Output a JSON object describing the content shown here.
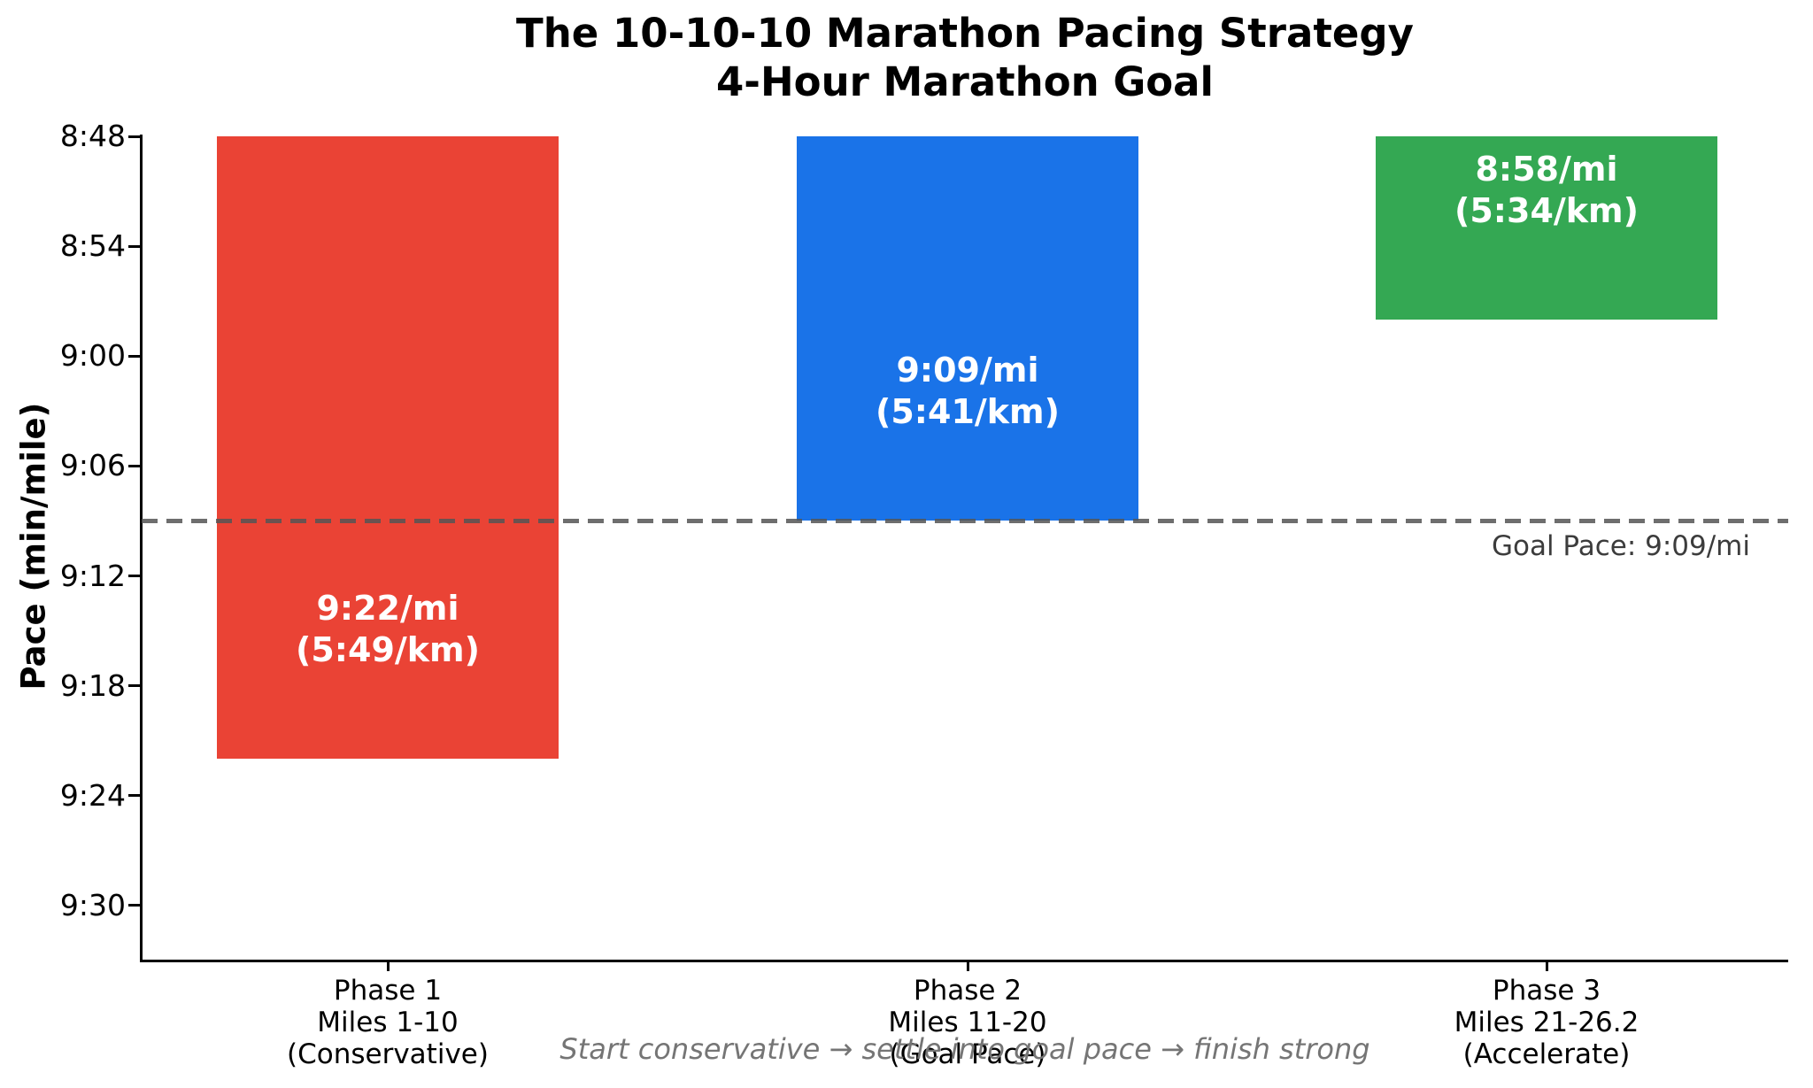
{
  "title": {
    "line1": "The 10-10-10 Marathon Pacing Strategy",
    "line2": "4-Hour Marathon Goal"
  },
  "y_axis": {
    "label": "Pace (min/mile)"
  },
  "goal_line": {
    "label": "Goal Pace: 9:09/mi"
  },
  "footer": "Start conservative → settle into goal pace → finish strong",
  "colors": {
    "phase1_red": "#ea4335",
    "phase2_blue": "#1a73e8",
    "phase3_green": "#34a853",
    "goal_line_gray": "#808080",
    "goal_label_text": "#3c3c3c",
    "footer_text": "#757575",
    "bar_label_text": "#ffffff",
    "axis_black": "#000000"
  },
  "chart_data": {
    "type": "bar",
    "title": "The 10-10-10 Marathon Pacing Strategy",
    "subtitle": "4-Hour Marathon Goal",
    "xlabel": "",
    "ylabel": "Pace (min/mile)",
    "grid": false,
    "legend": "none",
    "y_axis": {
      "inverted": true,
      "unit": "minutes:seconds per mile",
      "ylim": [
        "8:48",
        "9:33"
      ],
      "ylim_seconds": [
        528,
        573
      ],
      "ticks": [
        {
          "label": "8:48",
          "seconds": 528
        },
        {
          "label": "8:54",
          "seconds": 534
        },
        {
          "label": "9:00",
          "seconds": 540
        },
        {
          "label": "9:06",
          "seconds": 546
        },
        {
          "label": "9:12",
          "seconds": 552
        },
        {
          "label": "9:18",
          "seconds": 558
        },
        {
          "label": "9:24",
          "seconds": 564
        },
        {
          "label": "9:30",
          "seconds": 570
        }
      ]
    },
    "categories": [
      "Phase 1",
      "Phase 2",
      "Phase 3"
    ],
    "bars": [
      {
        "phase": "Phase 1",
        "miles": "Miles 1-10",
        "strategy": "(Conservative)",
        "pace_mi": "9:22/mi",
        "pace_km": "(5:49/km)",
        "pace_seconds": 562,
        "color": "#ea4335"
      },
      {
        "phase": "Phase 2",
        "miles": "Miles 11-20",
        "strategy": "(Goal Pace)",
        "pace_mi": "9:09/mi",
        "pace_km": "(5:41/km)",
        "pace_seconds": 549,
        "color": "#1a73e8"
      },
      {
        "phase": "Phase 3",
        "miles": "Miles 21-26.2",
        "strategy": "(Accelerate)",
        "pace_mi": "8:58/mi",
        "pace_km": "(5:34/km)",
        "pace_seconds": 538,
        "color": "#34a853"
      }
    ],
    "goal_line": {
      "label": "Goal Pace: 9:09/mi",
      "pace": "9:09/mi",
      "seconds": 549,
      "style": "dashed",
      "color": "#808080"
    },
    "annotation": "Start conservative → settle into goal pace → finish strong",
    "bars_anchor": "bars start at axis top (8:48) and extend down to their pace value"
  }
}
